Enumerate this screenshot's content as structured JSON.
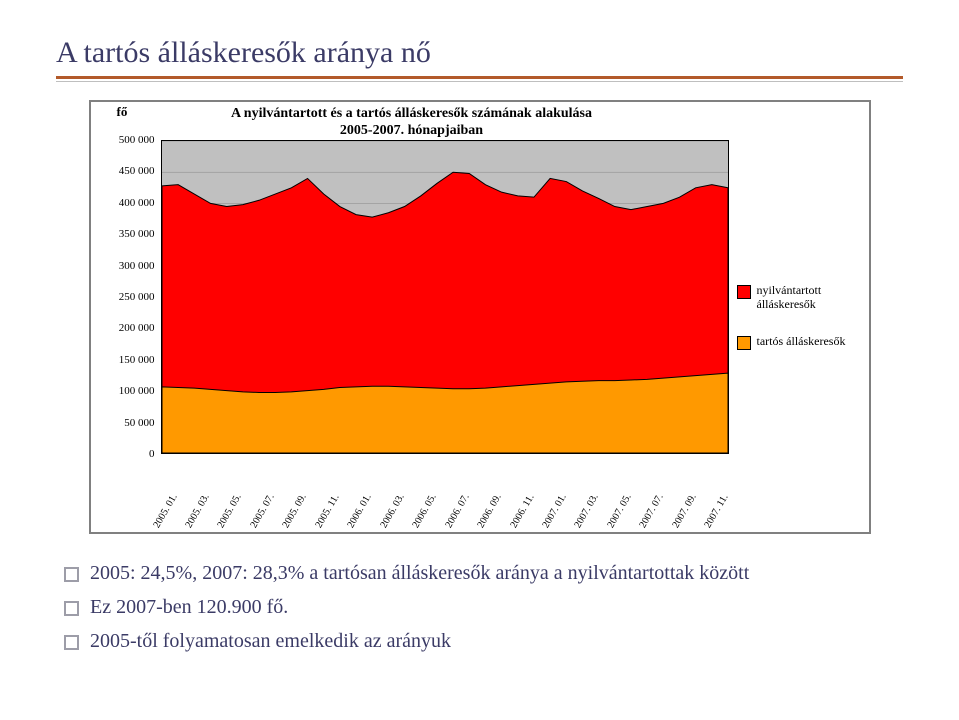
{
  "title": "A tartós álláskeresők aránya nő",
  "chart": {
    "type": "area",
    "y_unit_label": "fő",
    "title_line1": "A nyilvántartott és a tartós álláskeresők számának alakulása",
    "title_line2": "2005-2007. hónapjaiban",
    "title_fontsize": 14,
    "ylim": [
      0,
      500000
    ],
    "ytick_step": 50000,
    "yticks": [
      "0",
      "50 000",
      "100 000",
      "150 000",
      "200 000",
      "250 000",
      "300 000",
      "350 000",
      "400 000",
      "450 000",
      "500 000"
    ],
    "xlabels": [
      "2005. 01.",
      "2005. 03.",
      "2005. 05.",
      "2005. 07.",
      "2005. 09.",
      "2005. 11.",
      "2006. 01.",
      "2006. 03.",
      "2006. 05.",
      "2006. 07.",
      "2006. 09.",
      "2006. 11.",
      "2007. 01.",
      "2007. 03.",
      "2007. 05.",
      "2007. 07.",
      "2007. 09.",
      "2007. 11."
    ],
    "series": [
      {
        "name": "nyilvántartott álláskeresők",
        "color": "#ff0000",
        "stroke": "#000000",
        "stroke_width": 1,
        "values": [
          428000,
          430000,
          415000,
          400000,
          395000,
          398000,
          405000,
          415000,
          425000,
          440000,
          415000,
          395000,
          382000,
          378000,
          385000,
          395000,
          412000,
          432000,
          450000,
          448000,
          430000,
          418000,
          412000,
          410000,
          440000,
          435000,
          420000,
          408000,
          395000,
          390000,
          395000,
          400000,
          410000,
          425000,
          430000,
          425000
        ]
      },
      {
        "name": "tartós álláskeresők",
        "color": "#ff9900",
        "stroke": "#000000",
        "stroke_width": 1,
        "values": [
          106000,
          105000,
          104000,
          102000,
          100000,
          98000,
          97000,
          97000,
          98000,
          100000,
          102000,
          105000,
          106000,
          107000,
          107000,
          106000,
          105000,
          104000,
          103000,
          103000,
          104000,
          106000,
          108000,
          110000,
          112000,
          114000,
          115000,
          116000,
          116000,
          117000,
          118000,
          120000,
          122000,
          124000,
          126000,
          128000
        ]
      }
    ],
    "plot_background": "#c0c0c0",
    "grid_color": "#000000",
    "label_fontsize": 11
  },
  "legend": {
    "items": [
      {
        "label": "nyilvántartott álláskeresők",
        "color": "#ff0000"
      },
      {
        "label": "tartós álláskeresők",
        "color": "#ff9900"
      }
    ]
  },
  "bullets": [
    "2005: 24,5%, 2007: 28,3% a tartósan álláskeresők aránya a nyilvántartottak között",
    "Ez 2007-ben 120.900 fő.",
    "2005-től folyamatosan emelkedik az arányuk"
  ]
}
